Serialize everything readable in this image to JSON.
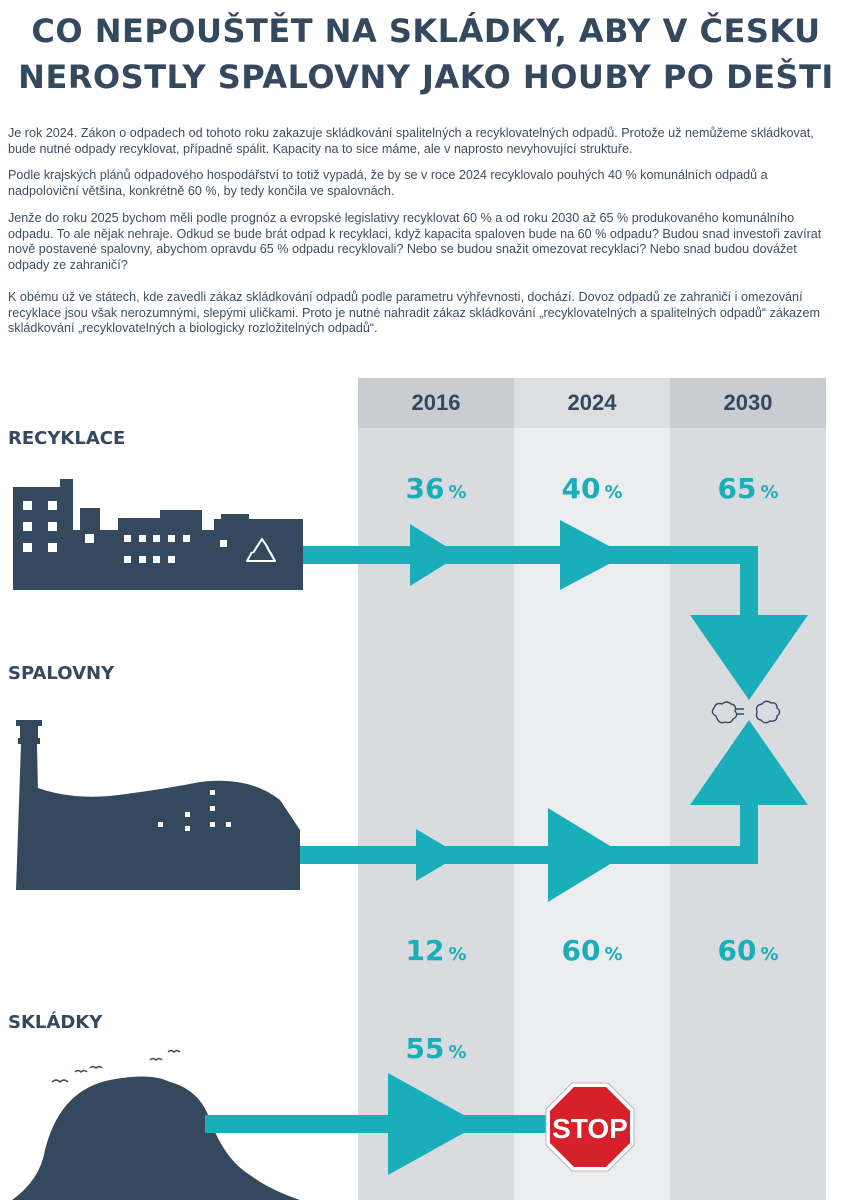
{
  "title": {
    "line1": "CO NEPOUŠTĚT NA SKLÁDKY, ABY V ČESKU",
    "line2": "NEROSTLY SPALOVNY JAKO HOUBY PO DEŠTI"
  },
  "paragraphs": [
    "Je rok 2024. Zákon o odpadech od tohoto roku zakazuje skládkování spalitelných a recyklovatelných odpadů. Protože už nemůžeme skládkovat, bude nutné odpady recyklovat, případně spálit. Kapacity na to sice máme, ale v naprosto nevyhovující struktuře.",
    "Podle krajských plánů odpadového hospodářství to totiž vypadá, že by se v roce 2024 recyklovalo pouhých 40 % komunálních odpadů a nadpoloviční většina, konkrétně 60 %, by tedy končila ve spalovnách.",
    "Jenže do roku 2025 bychom měli podle prognóz a evropské legislativy recyklovat 60 % a od roku 2030 až 65 % produkovaného komunálního odpadu. To ale nějak nehraje. Odkud se bude brát odpad k recyklaci, když kapacita spaloven bude na 60 % odpadu? Budou snad investoři zavírat nově postavené spalovny, abychom opravdu 65 % odpadu recyklovali? Nebo se budou snažit omezovat recyklaci? Nebo snad budou dovážet odpady ze zahraničí?",
    "K obému už ve státech, kde zavedli zákaz skládkování odpadů podle parametru výhřevnosti, dochází. Dovoz odpadů ze zahraničí i omezování recyklace jsou však nerozumnými, slepými uličkami. Proto je nutné nahradit zákaz skládkování „recyklovatelných a spalitelných odpadů“ zákazem skládkování „recyklovatelných a biologicky rozložitelných odpadů“."
  ],
  "years": [
    "2016",
    "2024",
    "2030"
  ],
  "categories": {
    "recyklace": "RECYKLACE",
    "spalovny": "SPALOVNY",
    "skladky": "SKLÁDKY"
  },
  "percent_sign": "%",
  "values": {
    "recyklace": [
      "36",
      "40",
      "65"
    ],
    "spalovny": [
      "12",
      "60",
      "60"
    ],
    "skladky": [
      "55"
    ]
  },
  "stop_sign": "STOP",
  "colors": {
    "accent": "#1aaebb",
    "dark": "#34495e",
    "column_dark": "#d9dcdf",
    "column_light": "#ecedee",
    "stop_red": "#d6202a"
  },
  "icons": [
    "factory-icon",
    "recycle-icon",
    "incinerator-icon",
    "landfill-icon",
    "bird-icon",
    "smoke-icon",
    "stop-sign-icon"
  ]
}
